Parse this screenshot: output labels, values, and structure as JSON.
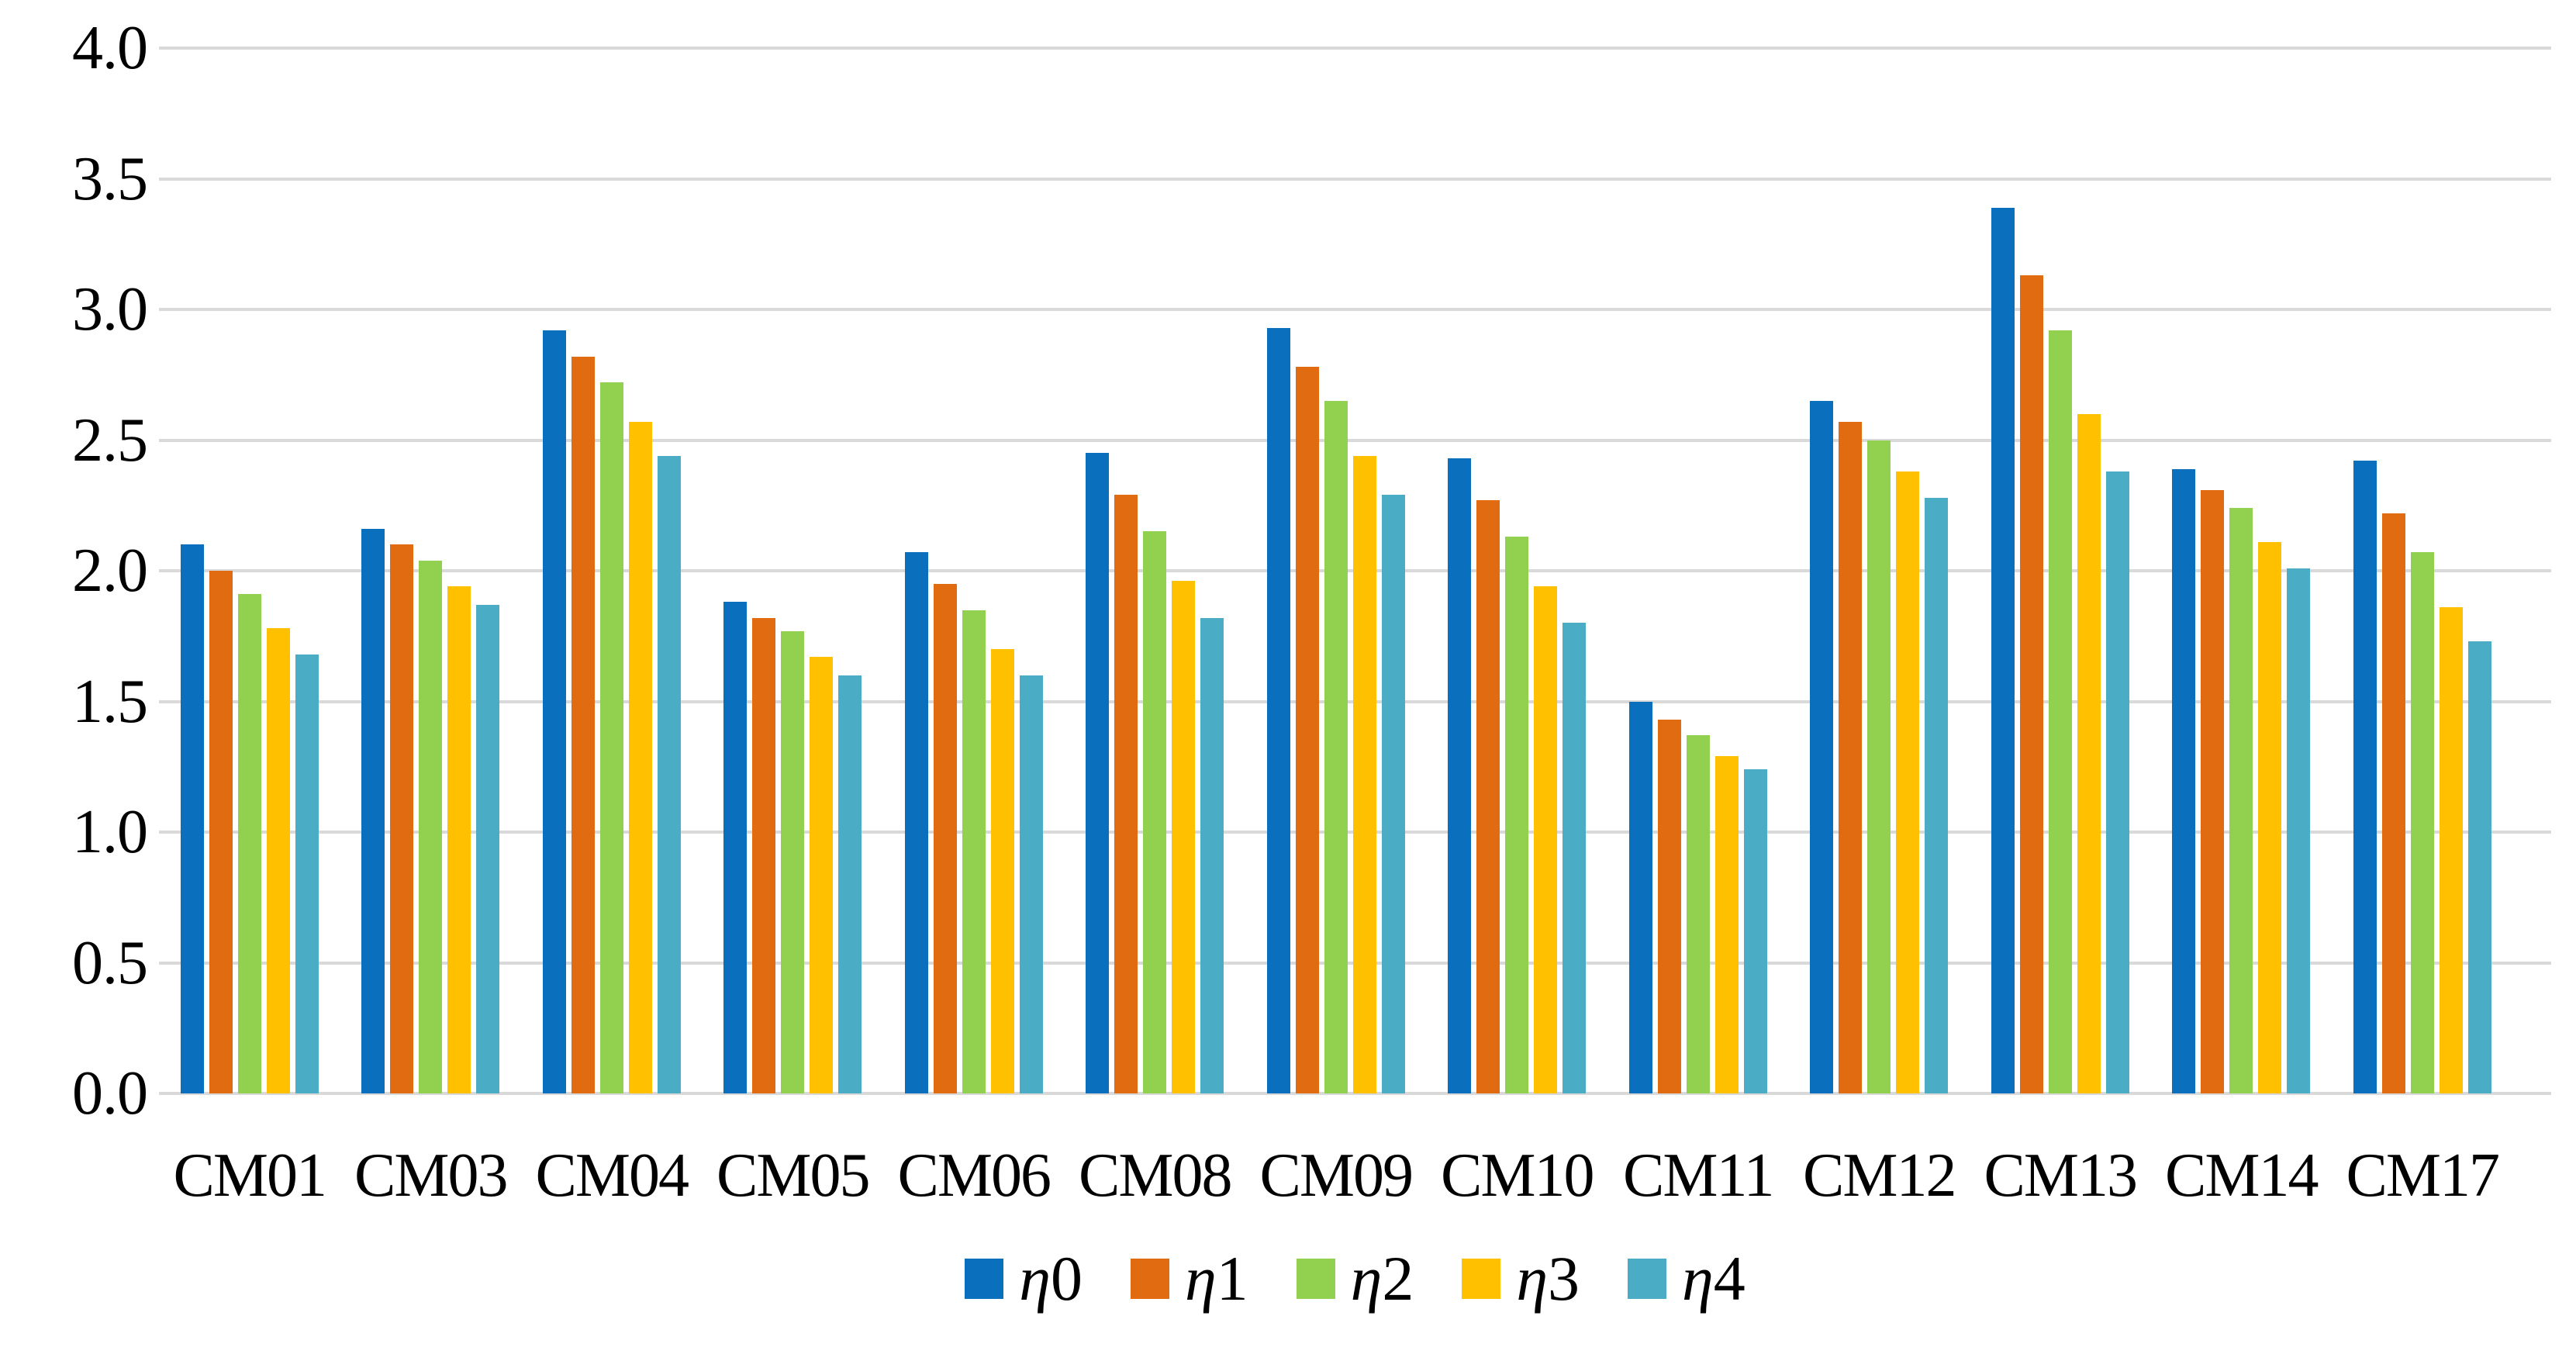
{
  "chart_data": {
    "type": "bar",
    "title": "",
    "xlabel": "",
    "ylabel": "",
    "categories": [
      "CM01",
      "CM03",
      "CM04",
      "CM05",
      "CM06",
      "CM08",
      "CM09",
      "CM10",
      "CM11",
      "CM12",
      "CM13",
      "CM14",
      "CM17"
    ],
    "series": [
      {
        "name": "η0",
        "color": "#0A70BE",
        "values": [
          2.1,
          2.16,
          2.92,
          1.88,
          2.07,
          2.45,
          2.93,
          2.43,
          1.5,
          2.65,
          3.39,
          2.39,
          2.42
        ]
      },
      {
        "name": "η1",
        "color": "#E06B10",
        "values": [
          2.0,
          2.1,
          2.82,
          1.82,
          1.95,
          2.29,
          2.78,
          2.27,
          1.43,
          2.57,
          3.13,
          2.31,
          2.22
        ]
      },
      {
        "name": "η2",
        "color": "#92D050",
        "values": [
          1.91,
          2.04,
          2.72,
          1.77,
          1.85,
          2.15,
          2.65,
          2.13,
          1.37,
          2.5,
          2.92,
          2.24,
          2.07
        ]
      },
      {
        "name": "η3",
        "color": "#FFC000",
        "values": [
          1.78,
          1.94,
          2.57,
          1.67,
          1.7,
          1.96,
          2.44,
          1.94,
          1.29,
          2.38,
          2.6,
          2.11,
          1.86
        ]
      },
      {
        "name": "η4",
        "color": "#4BACC6",
        "values": [
          1.68,
          1.87,
          2.44,
          1.6,
          1.6,
          1.82,
          2.29,
          1.8,
          1.24,
          2.28,
          2.38,
          2.01,
          1.73
        ]
      }
    ],
    "ylim": [
      0,
      4
    ],
    "ytick_step": 0.5,
    "ytick_labels": [
      "0.0",
      "0.5",
      "1.0",
      "1.5",
      "2.0",
      "2.5",
      "3.0",
      "3.5",
      "4.0"
    ],
    "grid": true,
    "gridline_color": "#D9D9D9",
    "background": "#FFFFFF",
    "legend_position": "bottom"
  }
}
